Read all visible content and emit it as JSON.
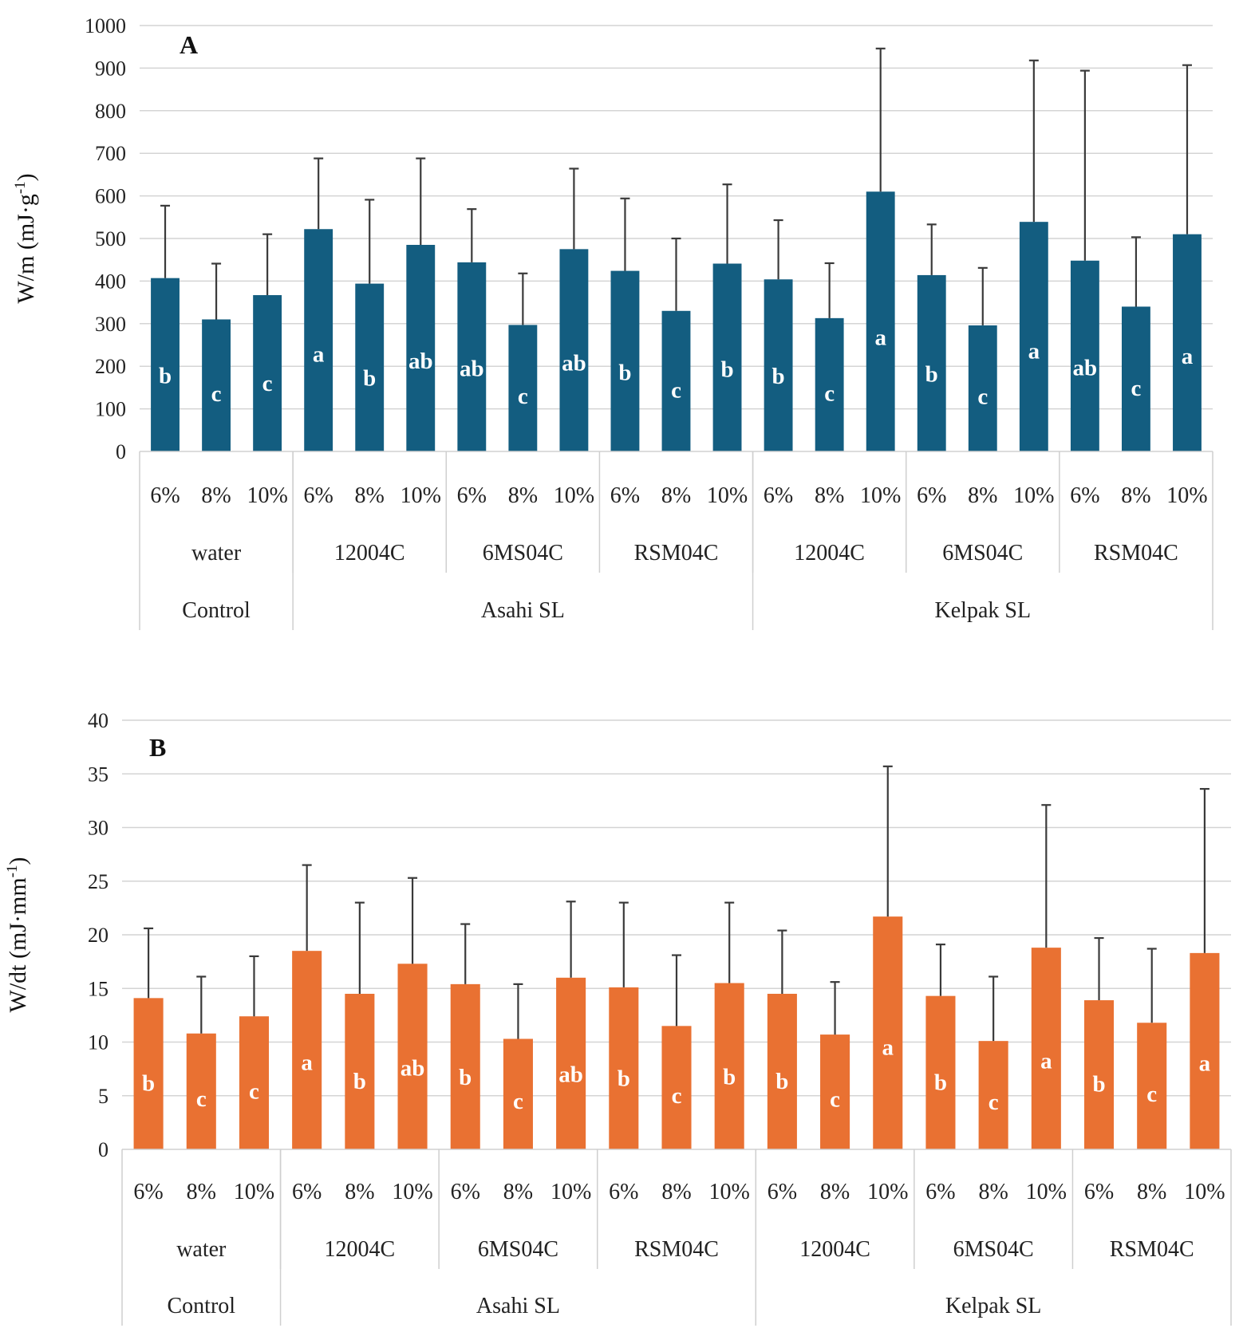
{
  "colors": {
    "panelA": "#135d80",
    "panelB": "#e97132"
  },
  "chart_data": [
    {
      "type": "bar",
      "panel": "A",
      "ylabel": "W/m  (mJ·g⁻¹)",
      "ylabel_main": "W/m  (mJ·g",
      "ylabel_sup": "-1",
      "ylabel_end": ")",
      "ylim": [
        0,
        1000
      ],
      "yticks": [
        0,
        100,
        200,
        300,
        400,
        500,
        600,
        700,
        800,
        900,
        1000
      ],
      "categories": [
        "6%",
        "8%",
        "10%",
        "6%",
        "8%",
        "10%",
        "6%",
        "8%",
        "10%",
        "6%",
        "8%",
        "10%",
        "6%",
        "8%",
        "10%",
        "6%",
        "8%",
        "10%",
        "6%",
        "8%",
        "10%"
      ],
      "groups": [
        "water",
        "12004C",
        "6MS04C",
        "RSM04C",
        "12004C",
        "6MS04C",
        "RSM04C"
      ],
      "supergroups": [
        {
          "label": "Control",
          "span": 1
        },
        {
          "label": "Asahi SL",
          "span": 3
        },
        {
          "label": "Kelpak SL",
          "span": 3
        }
      ],
      "values": [
        407,
        310,
        367,
        522,
        394,
        485,
        444,
        297,
        475,
        424,
        330,
        441,
        404,
        313,
        610,
        414,
        296,
        539,
        448,
        340,
        510
      ],
      "errors": [
        170,
        131,
        143,
        166,
        197,
        203,
        125,
        121,
        189,
        170,
        170,
        186,
        139,
        129,
        336,
        119,
        135,
        379,
        446,
        163,
        397
      ],
      "letters": [
        "b",
        "c",
        "c",
        "a",
        "b",
        "ab",
        "ab",
        "c",
        "ab",
        "b",
        "c",
        "b",
        "b",
        "c",
        "a",
        "b",
        "c",
        "a",
        "ab",
        "c",
        "a"
      ]
    },
    {
      "type": "bar",
      "panel": "B",
      "ylabel": "W/dt  (mJ·mm⁻¹)",
      "ylabel_main": "W/dt  (mJ·mm",
      "ylabel_sup": "-1",
      "ylabel_end": ")",
      "ylim": [
        0,
        40
      ],
      "yticks": [
        0,
        5,
        10,
        15,
        20,
        25,
        30,
        35,
        40
      ],
      "categories": [
        "6%",
        "8%",
        "10%",
        "6%",
        "8%",
        "10%",
        "6%",
        "8%",
        "10%",
        "6%",
        "8%",
        "10%",
        "6%",
        "8%",
        "10%",
        "6%",
        "8%",
        "10%",
        "6%",
        "8%",
        "10%"
      ],
      "groups": [
        "water",
        "12004C",
        "6MS04C",
        "RSM04C",
        "12004C",
        "6MS04C",
        "RSM04C"
      ],
      "supergroups": [
        {
          "label": "Control",
          "span": 1
        },
        {
          "label": "Asahi SL",
          "span": 3
        },
        {
          "label": "Kelpak SL",
          "span": 3
        }
      ],
      "values": [
        14.1,
        10.8,
        12.4,
        18.5,
        14.5,
        17.3,
        15.4,
        10.3,
        16.0,
        15.1,
        11.5,
        15.5,
        14.5,
        10.7,
        21.7,
        14.3,
        10.1,
        18.8,
        13.9,
        11.8,
        18.3
      ],
      "errors": [
        6.5,
        5.3,
        5.6,
        8.0,
        8.5,
        8.0,
        5.6,
        5.1,
        7.1,
        7.9,
        6.6,
        7.5,
        5.9,
        4.9,
        14.0,
        4.8,
        6.0,
        13.3,
        5.8,
        6.9,
        15.3
      ],
      "letters": [
        "b",
        "c",
        "c",
        "a",
        "b",
        "ab",
        "b",
        "c",
        "ab",
        "b",
        "c",
        "b",
        "b",
        "c",
        "a",
        "b",
        "c",
        "a",
        "b",
        "c",
        "a"
      ]
    }
  ]
}
